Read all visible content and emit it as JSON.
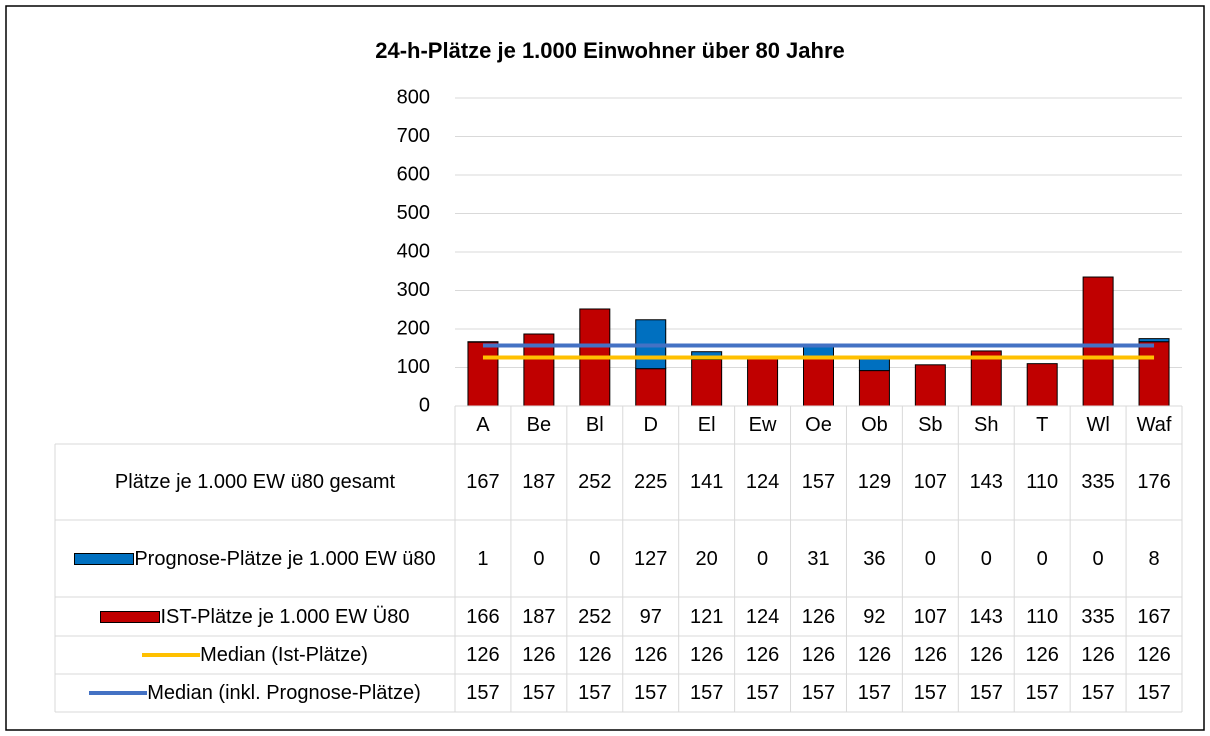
{
  "chart_data": {
    "type": "bar",
    "stacked": true,
    "title": "24-h-Plätze je 1.000 Einwohner über 80 Jahre",
    "categories": [
      "A",
      "Be",
      "Bl",
      "D",
      "El",
      "Ew",
      "Oe",
      "Ob",
      "Sb",
      "Sh",
      "T",
      "Wl",
      "Waf"
    ],
    "series": [
      {
        "name": "Plätze je 1.000 EW ü80 gesamt",
        "values": [
          167,
          187,
          252,
          225,
          141,
          124,
          157,
          129,
          107,
          143,
          110,
          335,
          176
        ]
      },
      {
        "name": "Prognose-Plätze je 1.000 EW ü80",
        "type": "bar",
        "color": "#0070c0",
        "values": [
          1,
          0,
          0,
          127,
          20,
          0,
          31,
          36,
          0,
          0,
          0,
          0,
          8
        ]
      },
      {
        "name": "IST-Plätze je 1.000 EW Ü80",
        "type": "bar",
        "color": "#c00000",
        "values": [
          166,
          187,
          252,
          97,
          121,
          124,
          126,
          92,
          107,
          143,
          110,
          335,
          167
        ]
      },
      {
        "name": "Median (Ist-Plätze)",
        "type": "line",
        "color": "#ffc000",
        "values": [
          126,
          126,
          126,
          126,
          126,
          126,
          126,
          126,
          126,
          126,
          126,
          126,
          126
        ]
      },
      {
        "name": "Median (inkl. Prognose-Plätze)",
        "type": "line",
        "color": "#4472c4",
        "values": [
          157,
          157,
          157,
          157,
          157,
          157,
          157,
          157,
          157,
          157,
          157,
          157,
          157
        ]
      }
    ],
    "ylim": [
      0,
      800
    ],
    "yticks": [
      0,
      100,
      200,
      300,
      400,
      500,
      600,
      700,
      800
    ],
    "grid": true
  }
}
